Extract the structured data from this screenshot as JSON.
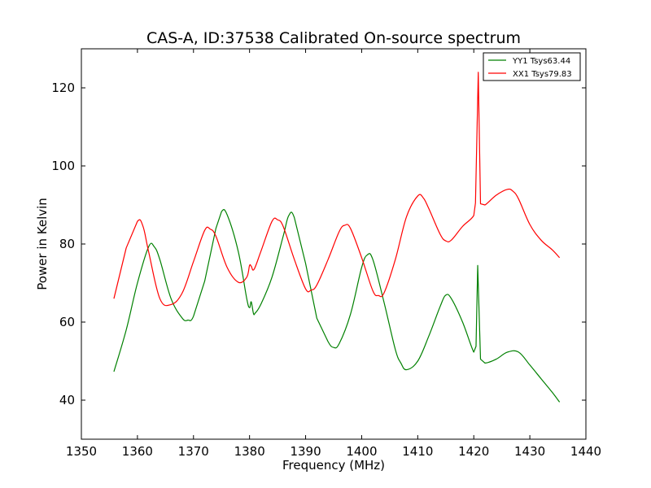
{
  "chart_data": {
    "type": "line",
    "title": "CAS-A, ID:37538 Calibrated On-source spectrum",
    "xlabel": "Frequency (MHz)",
    "ylabel": "Power in Kelvin",
    "xlim": [
      1350,
      1440
    ],
    "ylim": [
      30,
      130
    ],
    "xticks": [
      1350,
      1360,
      1370,
      1380,
      1390,
      1400,
      1410,
      1420,
      1430,
      1440
    ],
    "yticks": [
      40,
      60,
      80,
      100,
      120
    ],
    "grid": false,
    "legend_position": "top-right",
    "series": [
      {
        "name": "YY1 Tsys63.44",
        "color": "#008000",
        "x": [
          1355.8,
          1358,
          1360,
          1362,
          1363,
          1364,
          1366,
          1368,
          1369,
          1370,
          1372,
          1374,
          1375,
          1376,
          1378,
          1379.5,
          1380,
          1380.3,
          1380.7,
          1381,
          1382,
          1384,
          1386,
          1387,
          1388,
          1390,
          1392,
          1394,
          1395,
          1396,
          1398,
          1400,
          1401,
          1402,
          1404,
          1406,
          1407,
          1408,
          1410,
          1412,
          1414,
          1415,
          1416,
          1418,
          1420,
          1420.4,
          1420.7,
          1421.2,
          1422,
          1424,
          1426,
          1428,
          1430,
          1432,
          1434,
          1435.3
        ],
        "y": [
          47.3,
          58,
          70,
          79.3,
          79.3,
          76,
          66,
          61,
          60.5,
          61.5,
          70.5,
          84,
          88.3,
          87.5,
          78,
          66,
          63.7,
          65.2,
          62.2,
          62.3,
          64.5,
          71.5,
          82,
          87.3,
          86.7,
          75,
          61,
          55,
          53.5,
          54.5,
          62,
          74,
          77.2,
          76,
          65,
          53,
          49.5,
          47.8,
          50,
          56.5,
          64,
          66.9,
          66,
          60,
          52.3,
          53.8,
          74.5,
          50.5,
          49.5,
          50.5,
          52.3,
          52.3,
          49,
          45.5,
          42,
          39.5
        ]
      },
      {
        "name": "XX1 Tsys79.83",
        "color": "#ff0000",
        "x": [
          1355.8,
          1358,
          1360,
          1361,
          1362,
          1364,
          1366,
          1368,
          1370,
          1372,
          1373,
          1374,
          1376,
          1378,
          1379.5,
          1380,
          1380.3,
          1380.8,
          1382,
          1384,
          1385,
          1386,
          1388,
          1390,
          1391,
          1392,
          1394,
          1396,
          1397,
          1398,
          1400,
          1402,
          1403,
          1404,
          1406,
          1408,
          1410,
          1411,
          1412,
          1414,
          1415,
          1416,
          1418,
          1420,
          1420.3,
          1420.8,
          1421.2,
          1422,
          1424,
          1426,
          1427,
          1428,
          1430,
          1432,
          1434,
          1435.3
        ],
        "y": [
          66,
          79,
          85.8,
          84.5,
          78,
          66,
          64.5,
          67.5,
          75.5,
          83.5,
          83.8,
          82,
          74,
          70.2,
          71.5,
          74.5,
          74.3,
          73.5,
          78,
          85.8,
          86.2,
          84.5,
          76,
          68.5,
          68.2,
          69.5,
          76,
          83.2,
          84.8,
          84,
          76.5,
          68,
          66.8,
          67.5,
          76,
          87,
          92.3,
          91.8,
          89,
          82.5,
          80.8,
          81,
          84.5,
          87.3,
          90.5,
          124,
          90.3,
          90,
          92.5,
          94,
          93.5,
          91.5,
          85,
          81,
          78.5,
          76.5
        ]
      }
    ]
  }
}
